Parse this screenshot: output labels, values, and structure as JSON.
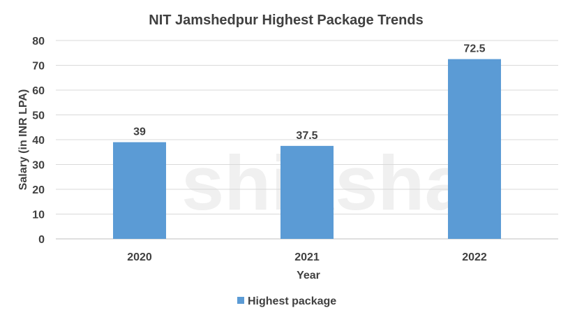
{
  "chart_data": {
    "type": "bar",
    "title": "NIT Jamshedpur Highest Package Trends",
    "xlabel": "Year",
    "ylabel": "Salary (in INR LPA)",
    "categories": [
      "2020",
      "2021",
      "2022"
    ],
    "series": [
      {
        "name": "Highest package",
        "values": [
          39,
          37.5,
          72.5
        ]
      }
    ],
    "data_labels": [
      "39",
      "37.5",
      "72.5"
    ],
    "ylim": [
      0,
      80
    ],
    "yticks": [
      0,
      10,
      20,
      30,
      40,
      50,
      60,
      70,
      80
    ],
    "grid": true,
    "legend": "bottom",
    "bar_color": "#5B9BD5",
    "watermark": "shiksha"
  }
}
